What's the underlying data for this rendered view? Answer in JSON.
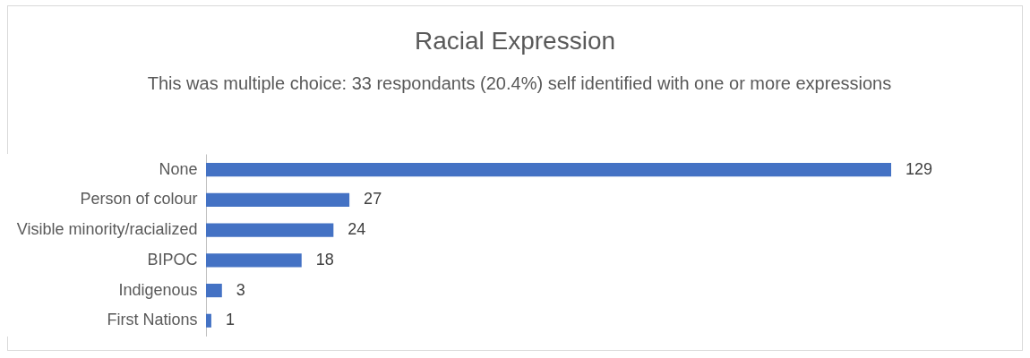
{
  "chart_data": {
    "type": "bar",
    "orientation": "horizontal",
    "title": "Racial Expression",
    "subtitle": "This was multiple choice: 33 respondants (20.4%) self identified with one or more expressions",
    "categories": [
      "None",
      "Person of colour",
      "Visible minority/racialized",
      "BIPOC",
      "Indigenous",
      "First Nations"
    ],
    "values": [
      129,
      27,
      24,
      18,
      3,
      1
    ],
    "color": "#4472c4",
    "data_labels": true
  }
}
